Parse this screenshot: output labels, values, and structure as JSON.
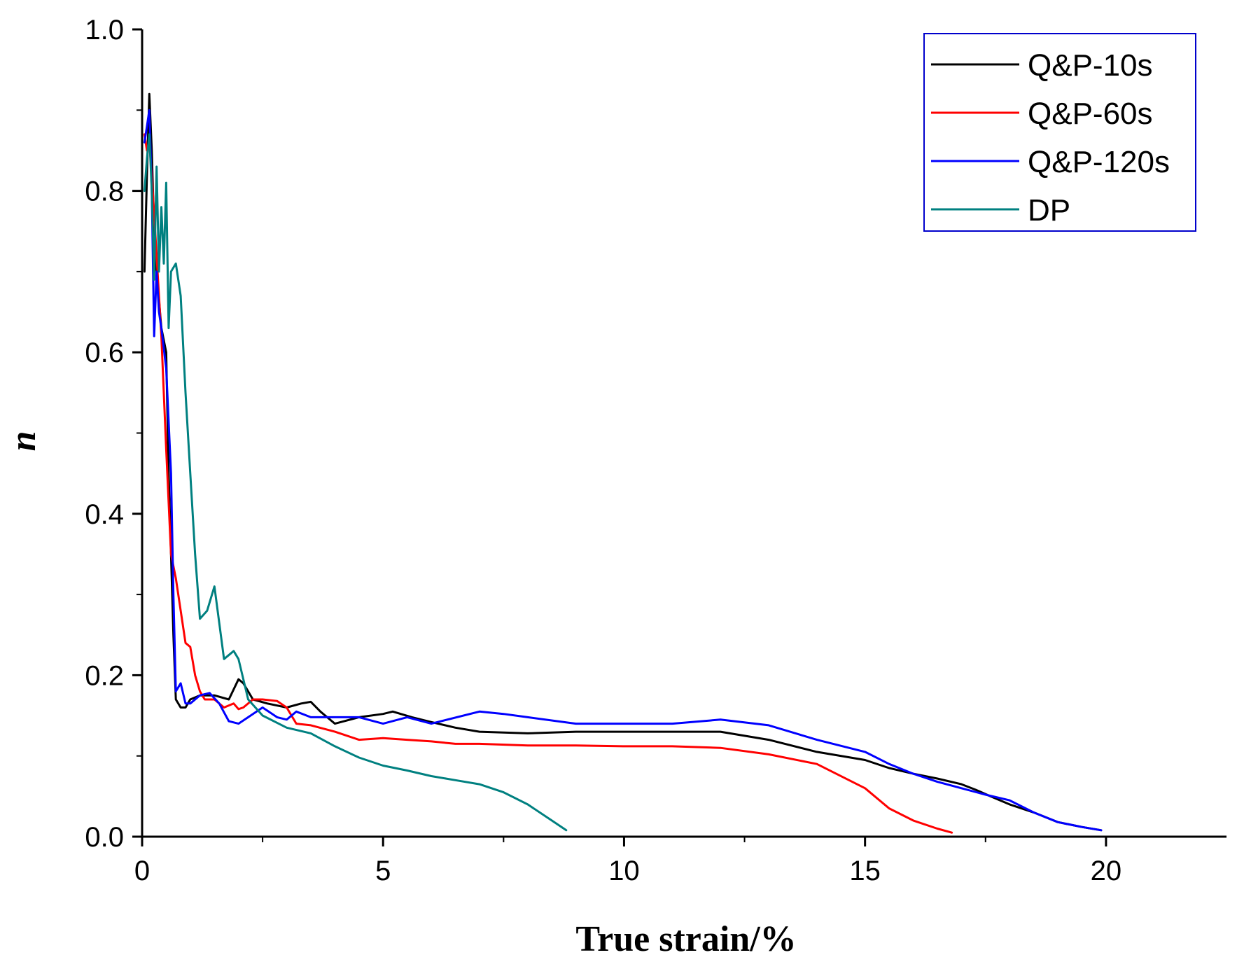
{
  "chart_data": {
    "type": "line",
    "title": "",
    "xlabel": "True strain/%",
    "ylabel": "n",
    "xlim": [
      0,
      22.5
    ],
    "ylim": [
      0,
      1.0
    ],
    "xticks": [
      0,
      5,
      10,
      15,
      20
    ],
    "xtick_labels": [
      "0",
      "5",
      "10",
      "15",
      "20"
    ],
    "yticks": [
      0,
      0.2,
      0.4,
      0.6,
      0.8,
      1.0
    ],
    "ytick_labels": [
      "0.0",
      "0.2",
      "0.4",
      "0.6",
      "0.8",
      "1.0"
    ],
    "legend_position": "top-right",
    "grid": false,
    "series": [
      {
        "name": "Q&P-10s",
        "color": "#000000",
        "x": [
          0.05,
          0.1,
          0.15,
          0.2,
          0.25,
          0.3,
          0.4,
          0.5,
          0.55,
          0.6,
          0.65,
          0.7,
          0.8,
          0.9,
          1.0,
          1.2,
          1.5,
          1.8,
          2.0,
          2.1,
          2.3,
          2.6,
          3.0,
          3.3,
          3.5,
          3.7,
          4.0,
          4.5,
          5.0,
          5.2,
          5.6,
          6.0,
          6.5,
          7.0,
          8.0,
          9.0,
          10.0,
          11.0,
          12.0,
          13.0,
          14.0,
          15.0,
          15.5,
          16.0,
          16.5,
          17.0,
          17.3,
          17.6,
          18.0,
          18.5,
          19.0,
          19.5,
          19.9
        ],
        "y": [
          0.7,
          0.82,
          0.92,
          0.85,
          0.75,
          0.7,
          0.63,
          0.6,
          0.45,
          0.35,
          0.25,
          0.17,
          0.16,
          0.16,
          0.17,
          0.175,
          0.175,
          0.17,
          0.195,
          0.19,
          0.17,
          0.165,
          0.16,
          0.165,
          0.167,
          0.155,
          0.14,
          0.148,
          0.152,
          0.155,
          0.148,
          0.142,
          0.135,
          0.13,
          0.128,
          0.13,
          0.13,
          0.13,
          0.13,
          0.12,
          0.105,
          0.095,
          0.085,
          0.078,
          0.072,
          0.065,
          0.058,
          0.05,
          0.04,
          0.03,
          0.018,
          0.012,
          0.008
        ]
      },
      {
        "name": "Q&P-60s",
        "color": "#ff0000",
        "x": [
          0.05,
          0.1,
          0.15,
          0.2,
          0.3,
          0.4,
          0.5,
          0.6,
          0.7,
          0.8,
          0.9,
          1.0,
          1.1,
          1.2,
          1.3,
          1.5,
          1.7,
          1.9,
          2.0,
          2.1,
          2.3,
          2.5,
          2.8,
          3.0,
          3.2,
          3.5,
          4.0,
          4.5,
          5.0,
          5.5,
          6.0,
          6.5,
          7.0,
          8.0,
          9.0,
          10.0,
          11.0,
          12.0,
          13.0,
          14.0,
          15.0,
          15.5,
          16.0,
          16.5,
          16.8
        ],
        "y": [
          0.87,
          0.85,
          0.86,
          0.82,
          0.72,
          0.62,
          0.48,
          0.35,
          0.32,
          0.28,
          0.24,
          0.235,
          0.2,
          0.18,
          0.17,
          0.17,
          0.16,
          0.165,
          0.158,
          0.16,
          0.17,
          0.17,
          0.168,
          0.16,
          0.14,
          0.138,
          0.13,
          0.12,
          0.122,
          0.12,
          0.118,
          0.115,
          0.115,
          0.113,
          0.113,
          0.112,
          0.112,
          0.11,
          0.102,
          0.09,
          0.06,
          0.035,
          0.02,
          0.01,
          0.005
        ]
      },
      {
        "name": "Q&P-120s",
        "color": "#0000ff",
        "x": [
          0.05,
          0.1,
          0.15,
          0.2,
          0.25,
          0.3,
          0.35,
          0.4,
          0.5,
          0.6,
          0.65,
          0.7,
          0.8,
          0.9,
          1.0,
          1.2,
          1.4,
          1.6,
          1.8,
          2.0,
          2.2,
          2.5,
          2.8,
          3.0,
          3.2,
          3.5,
          4.0,
          4.5,
          5.0,
          5.5,
          6.0,
          7.0,
          7.5,
          8.0,
          9.0,
          10.0,
          11.0,
          12.0,
          13.0,
          14.0,
          15.0,
          15.5,
          16.0,
          16.5,
          17.0,
          17.5,
          18.0,
          18.5,
          19.0,
          19.5,
          19.9
        ],
        "y": [
          0.86,
          0.88,
          0.9,
          0.8,
          0.62,
          0.7,
          0.65,
          0.63,
          0.58,
          0.45,
          0.3,
          0.18,
          0.19,
          0.165,
          0.165,
          0.175,
          0.178,
          0.165,
          0.143,
          0.14,
          0.148,
          0.16,
          0.148,
          0.145,
          0.155,
          0.148,
          0.148,
          0.148,
          0.14,
          0.148,
          0.14,
          0.155,
          0.152,
          0.148,
          0.14,
          0.14,
          0.14,
          0.145,
          0.138,
          0.12,
          0.105,
          0.09,
          0.078,
          0.068,
          0.06,
          0.052,
          0.045,
          0.03,
          0.018,
          0.012,
          0.008
        ]
      },
      {
        "name": "DP",
        "color": "#008080",
        "x": [
          0.05,
          0.1,
          0.15,
          0.2,
          0.25,
          0.3,
          0.35,
          0.4,
          0.45,
          0.5,
          0.55,
          0.6,
          0.7,
          0.8,
          0.9,
          1.0,
          1.1,
          1.2,
          1.35,
          1.5,
          1.7,
          1.9,
          2.0,
          2.2,
          2.5,
          3.0,
          3.5,
          4.0,
          4.5,
          5.0,
          5.5,
          6.0,
          6.5,
          7.0,
          7.5,
          8.0,
          8.5,
          8.8
        ],
        "y": [
          0.8,
          0.84,
          0.87,
          0.8,
          0.69,
          0.83,
          0.7,
          0.78,
          0.71,
          0.81,
          0.63,
          0.7,
          0.71,
          0.67,
          0.55,
          0.45,
          0.35,
          0.27,
          0.28,
          0.31,
          0.22,
          0.23,
          0.22,
          0.17,
          0.15,
          0.135,
          0.128,
          0.112,
          0.098,
          0.088,
          0.082,
          0.075,
          0.07,
          0.065,
          0.055,
          0.04,
          0.02,
          0.008
        ]
      }
    ]
  }
}
